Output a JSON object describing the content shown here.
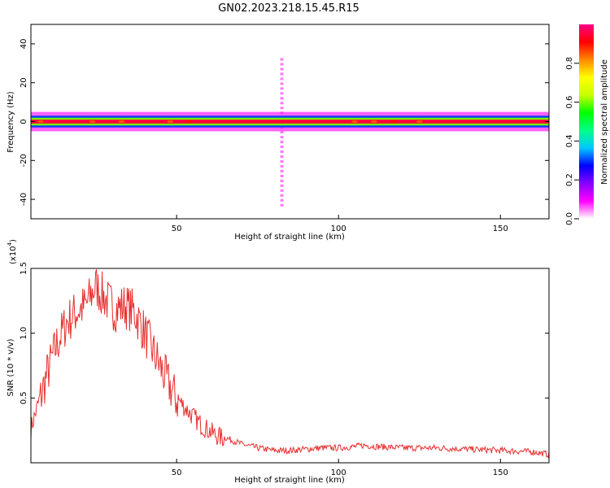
{
  "figure_title": "GN02.2023.218.15.45.R15",
  "colors": {
    "line": "#e83030",
    "axis": "#000000",
    "colormap": [
      "#ffffff",
      "#ff00ff",
      "#8800ff",
      "#0000ff",
      "#00c8ff",
      "#00ff88",
      "#00ff00",
      "#c8ff00",
      "#ffff00",
      "#ff8800",
      "#ff0000",
      "#ff0088"
    ]
  },
  "chart_data": [
    {
      "type": "heatmap",
      "title": "GN02.2023.218.15.45.R15",
      "xlabel": "Height of straight line (km)",
      "ylabel": "Frequency (Hz)",
      "xlim": [
        5,
        165
      ],
      "ylim": [
        -50,
        50
      ],
      "xticks": [
        "50",
        "100",
        "150"
      ],
      "yticks": [
        "40",
        "20",
        "0",
        "-20",
        "-40"
      ],
      "colorbar": {
        "label": "Normalized spectral amplitude",
        "range": [
          0,
          1
        ],
        "ticks": [
          "0.0",
          "0.2",
          "0.4",
          "0.6",
          "0.8"
        ]
      },
      "band": {
        "center_hz": 0,
        "halfwidth_hz": [
          1,
          2,
          3,
          5
        ],
        "levels": [
          0.95,
          0.6,
          0.3,
          0.08
        ]
      },
      "peak_spots": [
        {
          "x": 8,
          "level": 0.85
        },
        {
          "x": 24,
          "level": 0.85
        },
        {
          "x": 33,
          "level": 0.85
        },
        {
          "x": 48,
          "level": 0.85
        },
        {
          "x": 54,
          "level": 0.9
        },
        {
          "x": 105,
          "level": 0.85
        },
        {
          "x": 111,
          "level": 0.85
        },
        {
          "x": 117,
          "level": 0.9
        },
        {
          "x": 125,
          "level": 0.85
        }
      ],
      "spike": {
        "x": 82.5,
        "fmin": -43,
        "fmax": 32
      }
    },
    {
      "type": "line",
      "xlabel": "Height of straight line (km)",
      "ylabel": "SNR (10 * v/v)",
      "yscale_label": "(x10",
      "yscale_exp": "4",
      "xlim": [
        5,
        165
      ],
      "ylim": [
        0,
        1.5
      ],
      "xticks": [
        "50",
        "100",
        "150"
      ],
      "yticks": [
        "0.5",
        "1.0",
        "1.5"
      ],
      "series": [
        {
          "x": [
            5,
            7,
            10,
            13,
            16,
            19,
            22,
            25,
            28,
            31,
            34,
            37,
            40,
            43,
            46,
            50,
            54,
            58,
            62,
            66,
            70,
            75,
            80,
            85,
            90,
            95,
            100,
            105,
            108,
            112,
            120,
            130,
            140,
            150,
            160,
            165
          ],
          "values": [
            0.28,
            0.45,
            0.72,
            0.95,
            1.12,
            1.2,
            1.25,
            1.4,
            1.3,
            1.22,
            1.25,
            1.2,
            1.05,
            0.88,
            0.72,
            0.52,
            0.4,
            0.3,
            0.23,
            0.19,
            0.15,
            0.12,
            0.1,
            0.1,
            0.11,
            0.12,
            0.12,
            0.13,
            0.14,
            0.13,
            0.12,
            0.12,
            0.11,
            0.1,
            0.09,
            0.07
          ]
        }
      ]
    }
  ]
}
